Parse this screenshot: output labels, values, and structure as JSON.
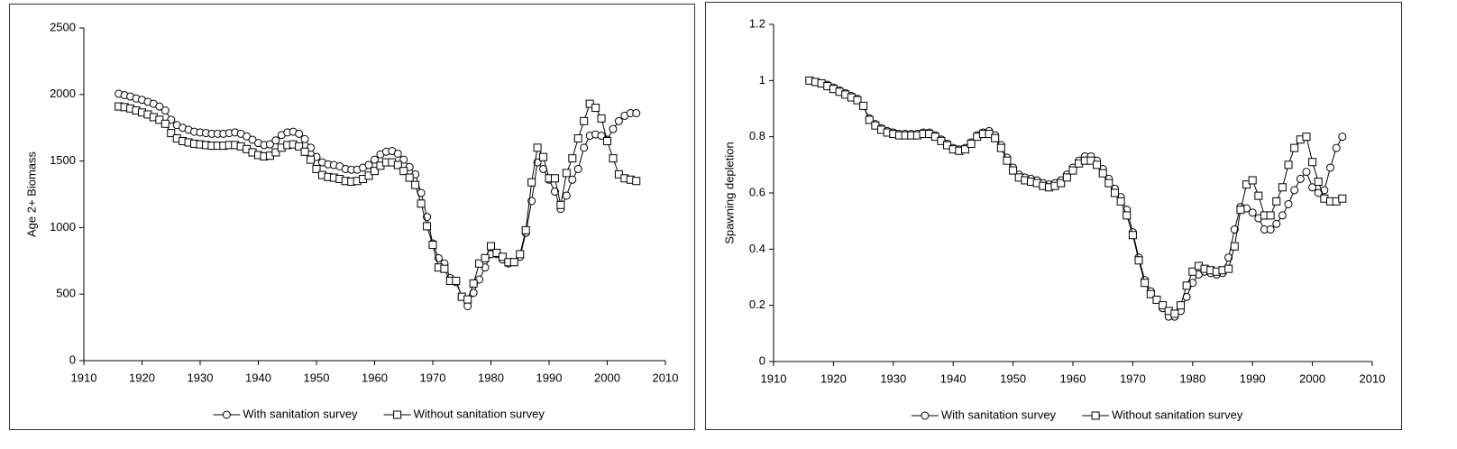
{
  "chart_data": [
    {
      "type": "line",
      "ylabel": "Age 2+ Biomass",
      "x": [
        1916,
        1917,
        1918,
        1919,
        1920,
        1921,
        1922,
        1923,
        1924,
        1925,
        1926,
        1927,
        1928,
        1929,
        1930,
        1931,
        1932,
        1933,
        1934,
        1935,
        1936,
        1937,
        1938,
        1939,
        1940,
        1941,
        1942,
        1943,
        1944,
        1945,
        1946,
        1947,
        1948,
        1949,
        1950,
        1951,
        1952,
        1953,
        1954,
        1955,
        1956,
        1957,
        1958,
        1959,
        1960,
        1961,
        1962,
        1963,
        1964,
        1965,
        1966,
        1967,
        1968,
        1969,
        1970,
        1971,
        1972,
        1973,
        1974,
        1975,
        1976,
        1977,
        1978,
        1979,
        1980,
        1981,
        1982,
        1983,
        1984,
        1985,
        1986,
        1987,
        1988,
        1989,
        1990,
        1991,
        1992,
        1993,
        1994,
        1995,
        1996,
        1997,
        1998,
        1999,
        2000,
        2001,
        2002,
        2003,
        2004,
        2005
      ],
      "series": [
        {
          "name": "With sanitation survey",
          "color": "#000000",
          "marker": "circle",
          "values": [
            2005,
            1995,
            1985,
            1970,
            1960,
            1945,
            1930,
            1910,
            1880,
            1810,
            1770,
            1750,
            1735,
            1720,
            1715,
            1710,
            1705,
            1705,
            1705,
            1710,
            1715,
            1705,
            1685,
            1660,
            1635,
            1620,
            1625,
            1655,
            1695,
            1715,
            1720,
            1705,
            1665,
            1600,
            1530,
            1490,
            1475,
            1470,
            1460,
            1440,
            1435,
            1435,
            1450,
            1470,
            1510,
            1550,
            1570,
            1575,
            1555,
            1510,
            1455,
            1400,
            1260,
            1080,
            880,
            770,
            730,
            620,
            590,
            480,
            410,
            510,
            610,
            700,
            800,
            800,
            760,
            730,
            740,
            780,
            960,
            1200,
            1490,
            1440,
            1360,
            1270,
            1140,
            1240,
            1360,
            1440,
            1600,
            1690,
            1700,
            1690,
            1660,
            1740,
            1800,
            1840,
            1860,
            1860
          ]
        },
        {
          "name": "Without sanitation survey",
          "color": "#000000",
          "marker": "square",
          "values": [
            1910,
            1905,
            1895,
            1880,
            1865,
            1850,
            1830,
            1810,
            1780,
            1710,
            1670,
            1650,
            1640,
            1630,
            1625,
            1620,
            1615,
            1615,
            1615,
            1620,
            1620,
            1610,
            1590,
            1565,
            1545,
            1535,
            1540,
            1565,
            1600,
            1620,
            1625,
            1610,
            1570,
            1510,
            1440,
            1395,
            1380,
            1375,
            1365,
            1350,
            1345,
            1350,
            1365,
            1390,
            1425,
            1465,
            1490,
            1490,
            1470,
            1425,
            1375,
            1320,
            1180,
            1010,
            870,
            700,
            690,
            600,
            600,
            480,
            460,
            580,
            730,
            770,
            860,
            810,
            780,
            740,
            740,
            800,
            980,
            1340,
            1600,
            1530,
            1370,
            1370,
            1170,
            1410,
            1520,
            1670,
            1800,
            1930,
            1900,
            1820,
            1650,
            1520,
            1400,
            1370,
            1360,
            1350
          ]
        }
      ],
      "xlim": [
        1910,
        2010
      ],
      "xticks": [
        1910,
        1920,
        1930,
        1940,
        1950,
        1960,
        1970,
        1980,
        1990,
        2000,
        2010
      ],
      "ylim": [
        0,
        2500
      ],
      "yticks": [
        0,
        500,
        1000,
        1500,
        2000,
        2500
      ],
      "grid": false,
      "legend": "bottom"
    },
    {
      "type": "line",
      "ylabel": "Spawning depletion",
      "x": [
        1916,
        1917,
        1918,
        1919,
        1920,
        1921,
        1922,
        1923,
        1924,
        1925,
        1926,
        1927,
        1928,
        1929,
        1930,
        1931,
        1932,
        1933,
        1934,
        1935,
        1936,
        1937,
        1938,
        1939,
        1940,
        1941,
        1942,
        1943,
        1944,
        1945,
        1946,
        1947,
        1948,
        1949,
        1950,
        1951,
        1952,
        1953,
        1954,
        1955,
        1956,
        1957,
        1958,
        1959,
        1960,
        1961,
        1962,
        1963,
        1964,
        1965,
        1966,
        1967,
        1968,
        1969,
        1970,
        1971,
        1972,
        1973,
        1974,
        1975,
        1976,
        1977,
        1978,
        1979,
        1980,
        1981,
        1982,
        1983,
        1984,
        1985,
        1986,
        1987,
        1988,
        1989,
        1990,
        1991,
        1992,
        1993,
        1994,
        1995,
        1996,
        1997,
        1998,
        1999,
        2000,
        2001,
        2002,
        2003,
        2004,
        2005
      ],
      "series": [
        {
          "name": "With sanitation survey",
          "color": "#000000",
          "marker": "circle",
          "values": [
            1.0,
            0.995,
            0.99,
            0.985,
            0.975,
            0.965,
            0.955,
            0.945,
            0.935,
            0.91,
            0.865,
            0.845,
            0.83,
            0.82,
            0.815,
            0.81,
            0.81,
            0.81,
            0.81,
            0.815,
            0.815,
            0.805,
            0.79,
            0.775,
            0.76,
            0.755,
            0.76,
            0.78,
            0.805,
            0.815,
            0.82,
            0.805,
            0.77,
            0.725,
            0.69,
            0.665,
            0.655,
            0.65,
            0.645,
            0.635,
            0.63,
            0.635,
            0.645,
            0.665,
            0.69,
            0.715,
            0.73,
            0.73,
            0.715,
            0.685,
            0.65,
            0.615,
            0.585,
            0.54,
            0.46,
            0.37,
            0.29,
            0.25,
            0.22,
            0.19,
            0.16,
            0.16,
            0.18,
            0.23,
            0.28,
            0.31,
            0.32,
            0.315,
            0.31,
            0.315,
            0.37,
            0.47,
            0.55,
            0.545,
            0.53,
            0.51,
            0.47,
            0.47,
            0.49,
            0.52,
            0.56,
            0.61,
            0.65,
            0.675,
            0.62,
            0.6,
            0.61,
            0.69,
            0.76,
            0.8
          ]
        },
        {
          "name": "Without sanitation survey",
          "color": "#000000",
          "marker": "square",
          "values": [
            1.0,
            0.995,
            0.99,
            0.98,
            0.97,
            0.96,
            0.95,
            0.94,
            0.93,
            0.91,
            0.86,
            0.84,
            0.825,
            0.815,
            0.81,
            0.805,
            0.805,
            0.805,
            0.805,
            0.81,
            0.81,
            0.8,
            0.785,
            0.77,
            0.755,
            0.75,
            0.755,
            0.775,
            0.8,
            0.81,
            0.81,
            0.795,
            0.76,
            0.715,
            0.68,
            0.655,
            0.645,
            0.64,
            0.635,
            0.625,
            0.62,
            0.625,
            0.635,
            0.655,
            0.68,
            0.705,
            0.715,
            0.715,
            0.7,
            0.67,
            0.635,
            0.6,
            0.57,
            0.52,
            0.45,
            0.36,
            0.28,
            0.24,
            0.22,
            0.2,
            0.18,
            0.17,
            0.2,
            0.27,
            0.32,
            0.34,
            0.33,
            0.325,
            0.32,
            0.325,
            0.33,
            0.41,
            0.54,
            0.63,
            0.645,
            0.59,
            0.52,
            0.52,
            0.57,
            0.62,
            0.7,
            0.76,
            0.79,
            0.8,
            0.71,
            0.64,
            0.58,
            0.57,
            0.57,
            0.58
          ]
        }
      ],
      "xlim": [
        1910,
        2010
      ],
      "xticks": [
        1910,
        1920,
        1930,
        1940,
        1950,
        1960,
        1970,
        1980,
        1990,
        2000,
        2010
      ],
      "ylim": [
        0,
        1.2
      ],
      "yticks": [
        0,
        0.2,
        0.4,
        0.6,
        0.8,
        1,
        1.2
      ],
      "grid": false,
      "legend": "bottom"
    }
  ]
}
